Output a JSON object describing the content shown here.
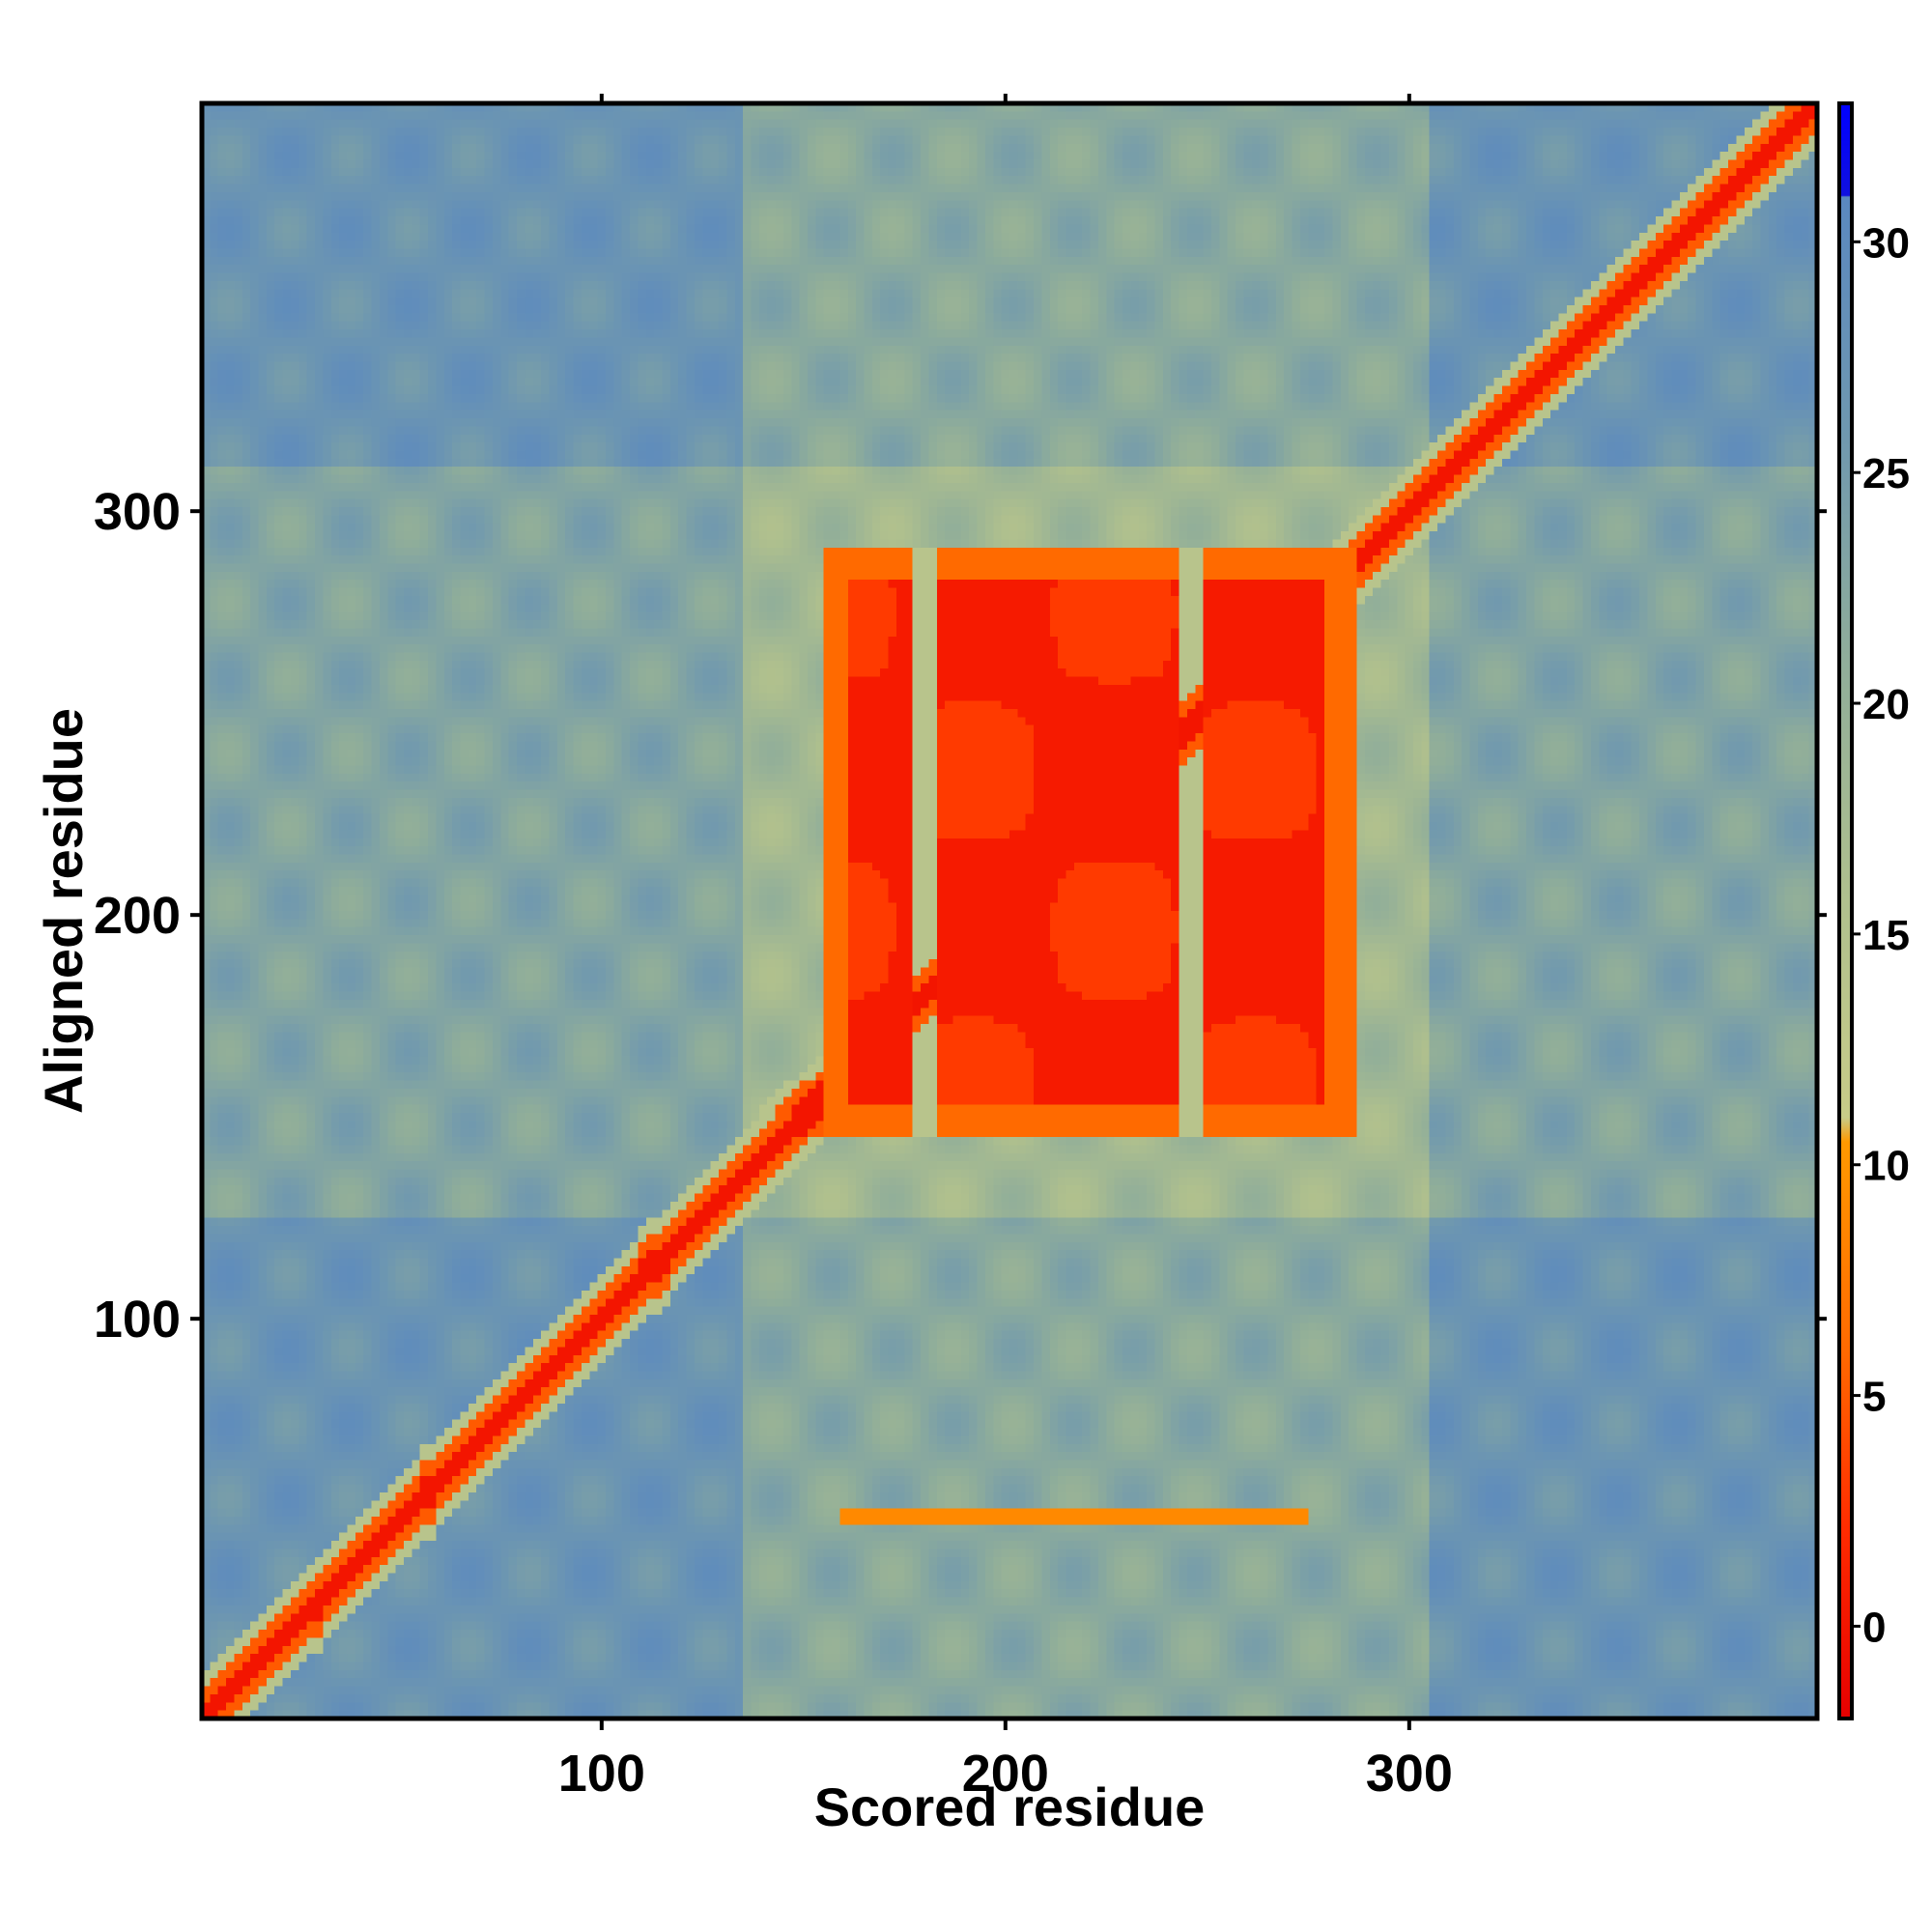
{
  "chart_data": {
    "type": "heatmap",
    "title": "",
    "xlabel": "Scored residue",
    "ylabel": "Aligned residue",
    "xlim": [
      1,
      401
    ],
    "ylim": [
      1,
      401
    ],
    "xticks": [
      100,
      200,
      300
    ],
    "yticks": [
      100,
      200,
      300
    ],
    "colorbar": {
      "range": [
        -2,
        33
      ],
      "ticks": [
        0,
        5,
        10,
        15,
        20,
        25,
        30
      ],
      "stops": [
        {
          "value": -2,
          "color": "#e60000"
        },
        {
          "value": 2,
          "color": "#ff2a00"
        },
        {
          "value": 6,
          "color": "#ff6a00"
        },
        {
          "value": 10.5,
          "color": "#ff9900"
        },
        {
          "value": 11,
          "color": "#c8cc88"
        },
        {
          "value": 16,
          "color": "#aebf8e"
        },
        {
          "value": 21,
          "color": "#8fad9a"
        },
        {
          "value": 26,
          "color": "#6e97b0"
        },
        {
          "value": 31,
          "color": "#5a88c0"
        },
        {
          "value": 31,
          "color": "#1010e0"
        },
        {
          "value": 33,
          "color": "#0000ff"
        }
      ]
    },
    "features": {
      "diagonal": {
        "from": 1,
        "to": 401,
        "value": 0
      },
      "domain_block": {
        "x_range": [
          155,
          286
        ],
        "y_range": [
          145,
          291
        ],
        "value": 3,
        "core_value": 0.5
      },
      "block_gaps_x": [
        177,
        183,
        244,
        250
      ],
      "secondary_band": {
        "y": 51,
        "x_range": [
          160,
          275
        ],
        "value": 9
      },
      "background_value": 27
    }
  }
}
